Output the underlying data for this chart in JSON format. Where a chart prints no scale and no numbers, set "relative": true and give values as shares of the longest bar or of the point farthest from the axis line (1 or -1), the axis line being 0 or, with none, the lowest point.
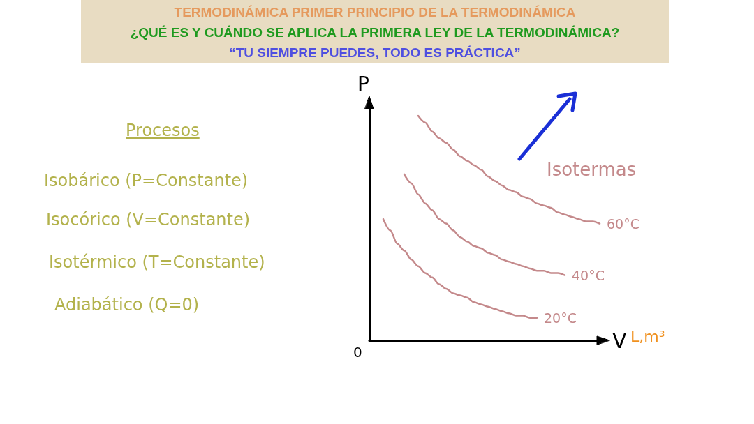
{
  "chart_data": {
    "type": "line",
    "title": "TERMODINÁMICA PRIMER PRINCIPIO DE LA TERMODINÁMICA",
    "subtitle": "¿QUÉ ES Y CUÁNDO SE APLICA LA PRIMERA LEY DE LA TERMODINÁMICA?\n“TU SIEMPRE PUEDES, TODO ES PRÁCTICA”",
    "xlabel": "V",
    "ylabel": "P",
    "annotations": [
      "Procesos",
      "Isobárico (P=Constante)",
      "Isocórico (V=Constante)",
      "Isotérmico (T=Constante)",
      "Adiabático (Q=0)",
      "Isotermas",
      "L,m³",
      "0"
    ],
    "categories": [
      null,
      null,
      null,
      null,
      null,
      null,
      null,
      null,
      null,
      null,
      null,
      null,
      null,
      null,
      null,
      null,
      null,
      null,
      null,
      null,
      null,
      null,
      null,
      null,
      null,
      null,
      null,
      null,
      null,
      null,
      null,
      null,
      null,
      null
    ],
    "relative": true,
    "marker": "none",
    "line_style": "solid",
    "series": [
      {
        "name": "60°C",
        "color": "#c4898b",
        "values": [
          null,
          null,
          null,
          null,
          null,
          null,
          null,
          1.0,
          0.97,
          0.93,
          0.9,
          0.88,
          0.85,
          0.82,
          0.8,
          0.78,
          0.76,
          0.73,
          0.71,
          0.69,
          0.67,
          0.66,
          0.64,
          0.63,
          0.61,
          0.6,
          0.59,
          0.57,
          0.56,
          0.55,
          0.54,
          0.53,
          0.53,
          0.52
        ]
      },
      {
        "name": "40°C",
        "color": "#c4898b",
        "values": [
          null,
          null,
          null,
          null,
          null,
          0.74,
          0.7,
          0.65,
          0.61,
          0.58,
          0.54,
          0.52,
          0.49,
          0.46,
          0.44,
          0.42,
          0.41,
          0.39,
          0.38,
          0.36,
          0.35,
          0.34,
          0.33,
          0.32,
          0.31,
          0.31,
          0.3,
          0.3,
          0.29,
          null,
          null,
          null,
          null,
          null
        ]
      },
      {
        "name": "20°C",
        "color": "#c4898b",
        "values": [
          null,
          null,
          0.54,
          0.49,
          0.43,
          0.4,
          0.36,
          0.33,
          0.3,
          0.28,
          0.25,
          0.23,
          0.21,
          0.2,
          0.19,
          0.17,
          0.16,
          0.15,
          0.14,
          0.13,
          0.12,
          0.11,
          0.11,
          0.1,
          0.1,
          null,
          null,
          null,
          null,
          null,
          null,
          null,
          null,
          null
        ]
      }
    ]
  }
}
